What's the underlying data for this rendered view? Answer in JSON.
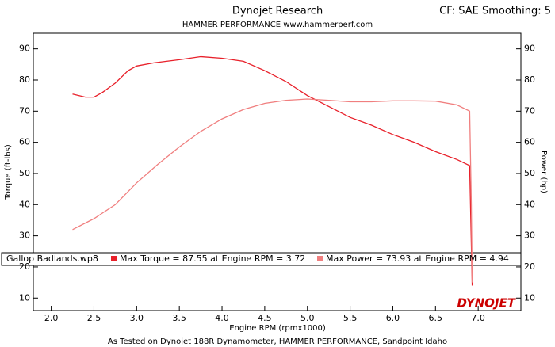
{
  "chart_data": {
    "type": "line",
    "title": "Dynojet Research",
    "subtitle": "HAMMER PERFORMANCE www.hammerperf.com",
    "header_right": "CF: SAE Smoothing: 5",
    "footer": "As Tested on Dynojet 188R Dynamometer, HAMMER PERFORMANCE, Sandpoint Idaho",
    "logo": "DYNOJET",
    "x_label": "Engine RPM (rpmx1000)",
    "y_label": "Torque (ft-lbs)",
    "y2_label": "Power (hp)",
    "legend_title": "Gallop Badlands.wp8",
    "xlim": [
      1.79,
      7.5
    ],
    "xticks": [
      {
        "value": 2,
        "label": "2.0"
      },
      2.5,
      {
        "value": 3,
        "label": "3.0"
      },
      3.5,
      {
        "value": 4,
        "label": "4.0"
      },
      4.5,
      {
        "value": 5,
        "label": "5.0"
      },
      5.5,
      {
        "value": 6,
        "label": "6.0"
      },
      6.5,
      {
        "value": 7,
        "label": "7.0"
      }
    ],
    "ylim": [
      6,
      95
    ],
    "yticks": [
      10,
      20,
      30,
      40,
      50,
      60,
      70,
      80,
      90
    ],
    "y2lim": [
      6,
      95
    ],
    "y2ticks": [
      10,
      20,
      30,
      40,
      50,
      60,
      70,
      80,
      90
    ],
    "grid": false,
    "series": [
      {
        "name": "Max Torque = 87.55 at Engine RPM = 3.72",
        "color": "#e8202a",
        "x": [
          2.25,
          2.4,
          2.5,
          2.6,
          2.75,
          2.9,
          3.0,
          3.2,
          3.5,
          3.75,
          4.0,
          4.25,
          4.5,
          4.75,
          5.0,
          5.25,
          5.5,
          5.75,
          6.0,
          6.25,
          6.5,
          6.75,
          6.9,
          6.93
        ],
        "values": [
          75.5,
          74.5,
          74.5,
          76,
          79,
          83,
          84.5,
          85.5,
          86.5,
          87.5,
          87,
          86,
          83,
          79.5,
          75,
          71.5,
          68,
          65.5,
          62.5,
          60,
          57,
          54.5,
          52.5,
          14
        ]
      },
      {
        "name": "Max Power = 73.93 at Engine RPM = 4.94",
        "color": "#f07f7f",
        "axis": "y2",
        "x": [
          2.25,
          2.5,
          2.75,
          3.0,
          3.25,
          3.5,
          3.75,
          4.0,
          4.25,
          4.5,
          4.75,
          5.0,
          5.25,
          5.5,
          5.75,
          6.0,
          6.25,
          6.5,
          6.75,
          6.9,
          6.92,
          6.93
        ],
        "values": [
          32,
          35.5,
          40,
          47,
          53,
          58.5,
          63.5,
          67.5,
          70.5,
          72.5,
          73.5,
          73.9,
          73.5,
          73,
          73,
          73.3,
          73.3,
          73.2,
          72,
          70,
          40,
          15
        ]
      }
    ]
  }
}
